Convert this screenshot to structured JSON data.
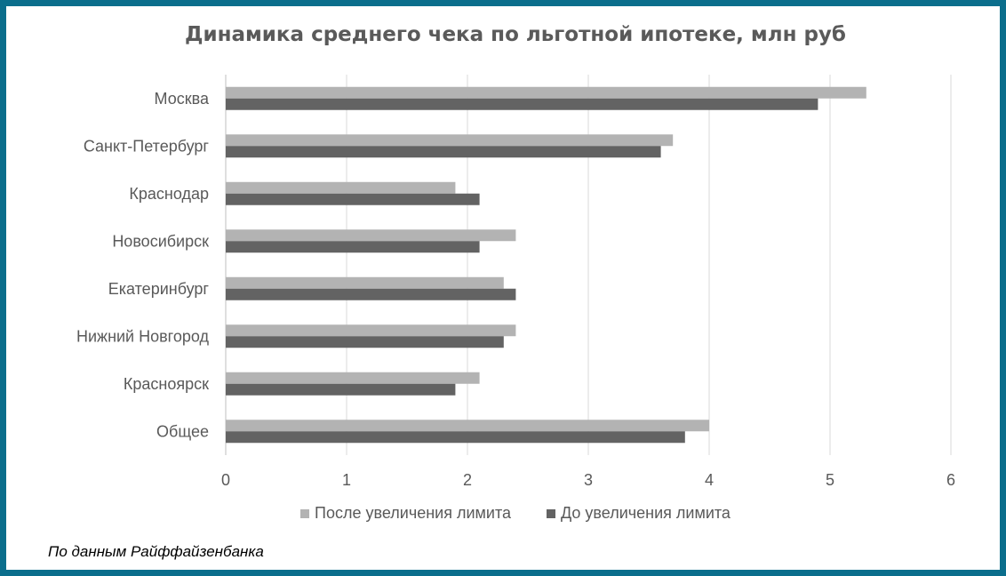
{
  "chart_data": {
    "type": "bar",
    "orientation": "horizontal",
    "title": "Динамика среднего чека по льготной ипотеке, млн руб",
    "categories": [
      "Москва",
      "Санкт-Петербург",
      "Краснодар",
      "Новосибирск",
      "Екатеринбург",
      "Нижний Новгород",
      "Красноярск",
      "Общее"
    ],
    "series": [
      {
        "name": "После увеличения лимита",
        "color": "#b3b3b3",
        "values": [
          5.3,
          3.7,
          1.9,
          2.4,
          2.3,
          2.4,
          2.1,
          4.0
        ]
      },
      {
        "name": "До увеличения лимита",
        "color": "#636363",
        "values": [
          4.9,
          3.6,
          2.1,
          2.1,
          2.4,
          2.3,
          1.9,
          3.8
        ]
      }
    ],
    "xlim": [
      0,
      6
    ],
    "xticks": [
      "0",
      "1",
      "2",
      "3",
      "4",
      "5",
      "6"
    ],
    "grid": "vertical",
    "legend": "bottom"
  },
  "source_note": "По данным Райффайзенбанка"
}
